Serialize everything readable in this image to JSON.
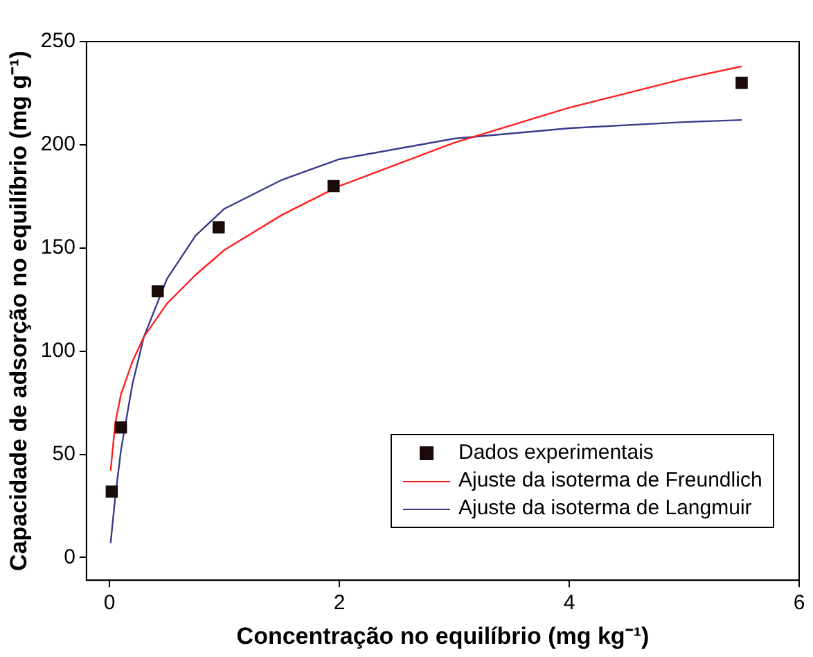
{
  "chart_data": {
    "type": "scatter",
    "xlabel": "Concentração no equilíbrio (mg kg⁻¹)",
    "ylabel": "Capacidade de adsorção no equilíbrio (mg g⁻¹)",
    "xlim": [
      -0.2,
      6
    ],
    "xticks": [
      0,
      2,
      4,
      6
    ],
    "ylim": [
      -11,
      250
    ],
    "yticks": [
      0,
      50,
      100,
      150,
      200,
      250
    ],
    "grid": false,
    "legend": "bottom right",
    "series": [
      {
        "name": "Dados experimentais",
        "type": "scatter",
        "marker": "square",
        "color": "#1a0a0a",
        "x": [
          0.02,
          0.1,
          0.42,
          0.95,
          1.95,
          5.5
        ],
        "values": [
          32,
          63,
          129,
          160,
          180,
          230
        ]
      },
      {
        "name": "Ajuste da isoterma de Freundlich",
        "type": "line",
        "marker": "none",
        "color": "#ff2020",
        "x": [
          0.01,
          0.05,
          0.1,
          0.2,
          0.3,
          0.5,
          0.75,
          1,
          1.5,
          2,
          3,
          4,
          5,
          5.5
        ],
        "values": [
          42,
          65,
          79,
          95,
          107,
          123,
          137,
          149,
          166,
          180,
          201,
          218,
          232,
          238
        ]
      },
      {
        "name": "Ajuste da isoterma de Langmuir",
        "type": "line",
        "marker": "none",
        "color": "#3a3a8c",
        "x": [
          0.01,
          0.05,
          0.1,
          0.2,
          0.3,
          0.5,
          0.75,
          1,
          1.5,
          2,
          3,
          4,
          5,
          5.5
        ],
        "values": [
          7,
          29,
          52,
          84,
          107,
          135,
          156,
          169,
          183,
          193,
          203,
          208,
          211,
          212
        ]
      }
    ]
  }
}
